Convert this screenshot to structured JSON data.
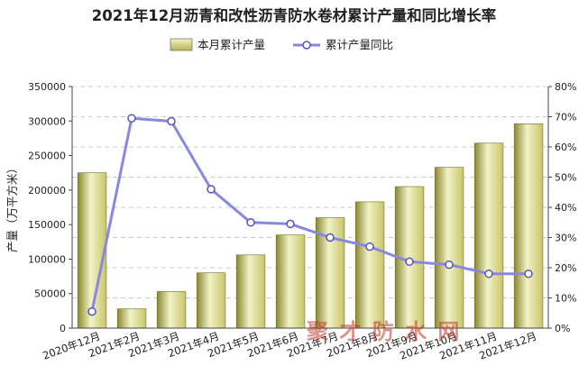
{
  "chart_data": {
    "type": "bar",
    "title": "2021年12月沥青和改性沥青防水卷材累计产量和同比增长率",
    "ylabel": "产量（万平方米）",
    "categories": [
      "2020年12月",
      "2021年2月",
      "2021年3月",
      "2021年4月",
      "2021年5月",
      "2021年6月",
      "2021年7月",
      "2021年8月",
      "2021年9月",
      "2021年10月",
      "2021年11月",
      "2021年12月"
    ],
    "series": [
      {
        "name": "本月累计产量",
        "type": "bar",
        "axis": "left",
        "values": [
          225000,
          28000,
          53000,
          80000,
          106000,
          135000,
          160000,
          183000,
          205000,
          233000,
          268000,
          296000
        ]
      },
      {
        "name": "累计产量同比",
        "type": "line",
        "axis": "right",
        "values": [
          5.5,
          69.5,
          68.5,
          46,
          35,
          34.5,
          30,
          27,
          22,
          21,
          18,
          18
        ]
      }
    ],
    "left_axis": {
      "ylim": [
        0,
        350000
      ],
      "ticks": [
        "0",
        "50000",
        "100000",
        "150000",
        "200000",
        "250000",
        "300000",
        "350000"
      ]
    },
    "right_axis": {
      "ylim": [
        0,
        80
      ],
      "ticks": [
        "0%",
        "10%",
        "20%",
        "30%",
        "40%",
        "50%",
        "60%",
        "70%",
        "80%"
      ]
    },
    "grid": true,
    "legend_position": "top-center",
    "colors": {
      "bar": "#c9c668",
      "bar_light": "#f3f2c8",
      "bar_dark": "#8a8830",
      "line": "#8888e0",
      "marker_fill": "#ffffff",
      "marker_stroke": "#5555bb"
    }
  },
  "watermark": "聚 才 防 水 网"
}
